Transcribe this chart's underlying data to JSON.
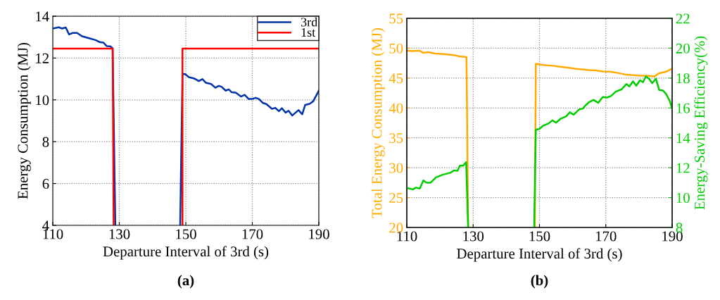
{
  "chart_data": [
    {
      "type": "line",
      "xlabel": "Departure Interval of 3rd (s)",
      "ylabel": "Energy Consumption (MJ)",
      "annotations": [
        "(a)"
      ],
      "xlim": [
        110,
        190
      ],
      "xticks": [
        110,
        130,
        150,
        170,
        190
      ],
      "ylim": [
        4,
        14
      ],
      "yticks": [
        4,
        6,
        8,
        10,
        12,
        14
      ],
      "grid": true,
      "legend": "top right",
      "line_style": "solid",
      "marker": "none",
      "series": [
        {
          "name": "3rd",
          "color": "#0033aa",
          "x": [
            110,
            111.8,
            112.8,
            113.9,
            114.9,
            116,
            117.3,
            118.8,
            120.9,
            123,
            124.1,
            125.2,
            126.2,
            127.3,
            128,
            128.8,
            138,
            148.3,
            149,
            149.8,
            150.9,
            152.7,
            153.9,
            155,
            156,
            157.6,
            158.9,
            159.9,
            160.8,
            162,
            162.9,
            163.8,
            165,
            166.6,
            167.7,
            168.9,
            169.9,
            171,
            172,
            173.1,
            174.2,
            175.9,
            176.9,
            178,
            178.9,
            180,
            180.9,
            182,
            183,
            183.9,
            185,
            185.9,
            187.2,
            188.3,
            190
          ],
          "values": [
            13.41,
            13.47,
            13.41,
            13.46,
            13.13,
            13.2,
            13.2,
            13.04,
            12.95,
            12.85,
            12.76,
            12.74,
            12.57,
            12.56,
            12.47,
            4,
            null,
            4,
            11.24,
            11.23,
            11.09,
            11.01,
            10.9,
            10.99,
            10.82,
            10.76,
            10.58,
            10.67,
            10.62,
            10.44,
            10.5,
            10.36,
            10.35,
            10.16,
            10.24,
            10.04,
            10.04,
            10.1,
            10.04,
            9.86,
            9.8,
            9.57,
            9.62,
            9.46,
            9.6,
            9.39,
            9.48,
            9.25,
            9.39,
            9.51,
            9.31,
            9.76,
            9.81,
            9.93,
            10.44
          ]
        },
        {
          "name": "1st",
          "color": "#ff0000",
          "x": [
            110,
            128,
            128.3,
            148.7,
            149,
            149,
            190
          ],
          "values": [
            12.45,
            12.45,
            4,
            null,
            4,
            12.45,
            12.45
          ]
        }
      ]
    },
    {
      "type": "line",
      "xlabel": "Departure Interval of 3rd (s)",
      "ylabel": "Total Energy Consumption (MJ)",
      "y2label": "Energy-Saving Efficiency(%)",
      "annotations": [
        "(b)"
      ],
      "xlim": [
        110,
        190
      ],
      "xticks": [
        110,
        130,
        150,
        170,
        190
      ],
      "ylim": [
        20,
        55
      ],
      "yticks": [
        20,
        25,
        30,
        35,
        40,
        45,
        50,
        55
      ],
      "y2lim": [
        8,
        22
      ],
      "y2ticks": [
        8,
        10,
        12,
        14,
        16,
        18,
        20,
        22
      ],
      "grid": true,
      "line_style": "solid",
      "marker": "none",
      "series": [
        {
          "color": "#ffaa00",
          "x": [
            110,
            111.4,
            113.9,
            115,
            116.4,
            118.5,
            121,
            123.1,
            124.5,
            125.9,
            128,
            128.5,
            138,
            148.6,
            148.9,
            150.4,
            152.1,
            154.2,
            155.7,
            158.5,
            160.6,
            162.7,
            164.9,
            167,
            169.1,
            171.2,
            173.4,
            176.2,
            178.3,
            180.4,
            182.6,
            184.7,
            186.1,
            188.2,
            190
          ],
          "values": [
            49.61,
            49.53,
            49.57,
            49.22,
            49.34,
            49.1,
            49.02,
            48.9,
            48.8,
            48.63,
            48.51,
            20,
            null,
            20,
            47.37,
            47.25,
            47.14,
            47.06,
            46.94,
            46.74,
            46.58,
            46.47,
            46.35,
            46.27,
            46.11,
            46.07,
            45.88,
            45.56,
            45.48,
            45.4,
            45.4,
            45.29,
            45.8,
            46.07,
            46.58
          ]
        },
        {
          "color": "#00cc00",
          "axis": "y2",
          "x": [
            110,
            111.8,
            112.8,
            113.9,
            115,
            116,
            117.1,
            118.8,
            121,
            123.1,
            124.2,
            125.3,
            126,
            127,
            127.9,
            128.5,
            138,
            148.4,
            148.9,
            150,
            151.1,
            152.8,
            153.9,
            155,
            156.4,
            158.1,
            159.1,
            160.3,
            162,
            163.1,
            163.8,
            164.9,
            166.3,
            167.7,
            169.1,
            170.5,
            171.6,
            173,
            174.8,
            176.2,
            177.1,
            178.2,
            179.2,
            180.3,
            181.2,
            182.1,
            183,
            184,
            185.1,
            186.1,
            187.2,
            188.2,
            189.3,
            190
          ],
          "values": [
            10.64,
            10.55,
            10.67,
            10.6,
            11.15,
            10.99,
            10.99,
            11.35,
            11.54,
            11.66,
            11.82,
            11.79,
            12.14,
            12.14,
            12.37,
            8,
            null,
            8,
            14.54,
            14.6,
            14.81,
            14.97,
            15.17,
            15.01,
            15.28,
            15.44,
            15.71,
            15.55,
            15.91,
            15.96,
            16.15,
            16.38,
            16.54,
            16.35,
            16.73,
            16.7,
            16.81,
            17.09,
            17.25,
            17.6,
            17.44,
            17.78,
            17.49,
            17.85,
            17.72,
            18.11,
            17.96,
            17.66,
            17.96,
            17.2,
            17.17,
            16.93,
            16.46,
            15.96
          ]
        }
      ]
    }
  ]
}
